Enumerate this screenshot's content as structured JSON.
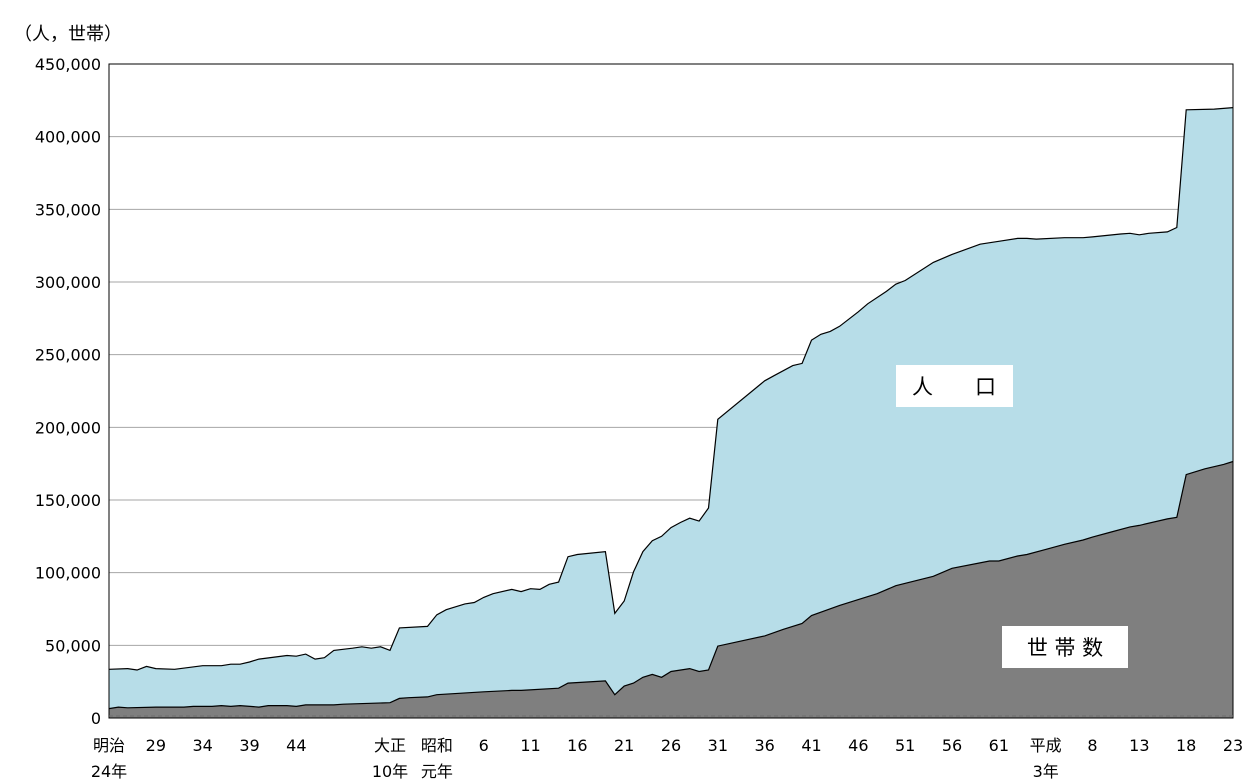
{
  "chart_data": {
    "type": "area",
    "title": "",
    "ylabel": "（人，世帯）",
    "ylim": [
      0,
      450000
    ],
    "y_ticks": [
      0,
      50000,
      100000,
      150000,
      200000,
      250000,
      300000,
      350000,
      400000,
      450000
    ],
    "y_tick_labels": [
      "0",
      "50,000",
      "100,000",
      "150,000",
      "200,000",
      "250,000",
      "300,000",
      "350,000",
      "400,000",
      "450,000"
    ],
    "grid": true,
    "x_tick_labels": [
      {
        "line1": "明治",
        "line2": "24年",
        "year": "明治24年"
      },
      {
        "line1": "29",
        "line2": "",
        "year": "明治29年"
      },
      {
        "line1": "34",
        "line2": "",
        "year": "明治34年"
      },
      {
        "line1": "39",
        "line2": "",
        "year": "明治39年"
      },
      {
        "line1": "44",
        "line2": "",
        "year": "明治44年"
      },
      {
        "line1": "大正",
        "line2": "10年",
        "year": "大正10年"
      },
      {
        "line1": "昭和",
        "line2": "元年",
        "year": "昭和元年"
      },
      {
        "line1": "6",
        "line2": "",
        "year": "昭和6年"
      },
      {
        "line1": "11",
        "line2": "",
        "year": "昭和11年"
      },
      {
        "line1": "16",
        "line2": "",
        "year": "昭和16年"
      },
      {
        "line1": "21",
        "line2": "",
        "year": "昭和21年"
      },
      {
        "line1": "26",
        "line2": "",
        "year": "昭和26年"
      },
      {
        "line1": "31",
        "line2": "",
        "year": "昭和31年"
      },
      {
        "line1": "36",
        "line2": "",
        "year": "昭和36年"
      },
      {
        "line1": "41",
        "line2": "",
        "year": "昭和41年"
      },
      {
        "line1": "46",
        "line2": "",
        "year": "昭和46年"
      },
      {
        "line1": "51",
        "line2": "",
        "year": "昭和51年"
      },
      {
        "line1": "56",
        "line2": "",
        "year": "昭和56年"
      },
      {
        "line1": "61",
        "line2": "",
        "year": "昭和61年"
      },
      {
        "line1": "平成",
        "line2": "3年",
        "year": "平成3年"
      },
      {
        "line1": "8",
        "line2": "",
        "year": "平成8年"
      },
      {
        "line1": "13",
        "line2": "",
        "year": "平成13年"
      },
      {
        "line1": "18",
        "line2": "",
        "year": "平成18年"
      },
      {
        "line1": "23",
        "line2": "",
        "year": "平成23年"
      }
    ],
    "series": [
      {
        "name": "人　　口",
        "color": "#b7dde8",
        "values": [
          {
            "year": "明治24年",
            "value": 33500
          },
          {
            "year": "明治26年",
            "value": 34000
          },
          {
            "year": "明治27年",
            "value": 33000
          },
          {
            "year": "明治28年",
            "value": 35500
          },
          {
            "year": "明治29年",
            "value": 34000
          },
          {
            "year": "明治31年",
            "value": 33500
          },
          {
            "year": "明治34年",
            "value": 36000
          },
          {
            "year": "明治36年",
            "value": 36000
          },
          {
            "year": "明治37年",
            "value": 37000
          },
          {
            "year": "明治38年",
            "value": 37000
          },
          {
            "year": "明治39年",
            "value": 38500
          },
          {
            "year": "明治40年",
            "value": 40500
          },
          {
            "year": "明治43年",
            "value": 43000
          },
          {
            "year": "明治44年",
            "value": 42500
          },
          {
            "year": "明治45年",
            "value": 44000
          },
          {
            "year": "大正2年",
            "value": 40500
          },
          {
            "year": "大正3年",
            "value": 41500
          },
          {
            "year": "大正4年",
            "value": 46500
          },
          {
            "year": "大正6年",
            "value": 48000
          },
          {
            "year": "大正7年",
            "value": 49000
          },
          {
            "year": "大正8年",
            "value": 48000
          },
          {
            "year": "大正9年",
            "value": 49000
          },
          {
            "year": "大正10年",
            "value": 46500
          },
          {
            "year": "大正11年",
            "value": 62000
          },
          {
            "year": "大正14年",
            "value": 63000
          },
          {
            "year": "昭和元年",
            "value": 71000
          },
          {
            "year": "昭和2年",
            "value": 74500
          },
          {
            "year": "昭和4年",
            "value": 78500
          },
          {
            "year": "昭和5年",
            "value": 79500
          },
          {
            "year": "昭和6年",
            "value": 83000
          },
          {
            "year": "昭和7年",
            "value": 85500
          },
          {
            "year": "昭和9年",
            "value": 88500
          },
          {
            "year": "昭和10年",
            "value": 87000
          },
          {
            "year": "昭和11年",
            "value": 89000
          },
          {
            "year": "昭和12年",
            "value": 88500
          },
          {
            "year": "昭和13年",
            "value": 92000
          },
          {
            "year": "昭和14年",
            "value": 93500
          },
          {
            "year": "昭和15年",
            "value": 111000
          },
          {
            "year": "昭和16年",
            "value": 112500
          },
          {
            "year": "昭和19年",
            "value": 114500
          },
          {
            "year": "昭和20年",
            "value": 72000
          },
          {
            "year": "昭和21年",
            "value": 80500
          },
          {
            "year": "昭和22年",
            "value": 100500
          },
          {
            "year": "昭和23年",
            "value": 114500
          },
          {
            "year": "昭和24年",
            "value": 122000
          },
          {
            "year": "昭和25年",
            "value": 125000
          },
          {
            "year": "昭和26年",
            "value": 131000
          },
          {
            "year": "昭和27年",
            "value": 134500
          },
          {
            "year": "昭和28年",
            "value": 137500
          },
          {
            "year": "昭和29年",
            "value": 135500
          },
          {
            "year": "昭和30年",
            "value": 144500
          },
          {
            "year": "昭和31年",
            "value": 205500
          },
          {
            "year": "昭和36年",
            "value": 232000
          },
          {
            "year": "昭和37年",
            "value": 235500
          },
          {
            "year": "昭和39年",
            "value": 242500
          },
          {
            "year": "昭和40年",
            "value": 244000
          },
          {
            "year": "昭和41年",
            "value": 260000
          },
          {
            "year": "昭和42年",
            "value": 264000
          },
          {
            "year": "昭和43年",
            "value": 266000
          },
          {
            "year": "昭和44年",
            "value": 269500
          },
          {
            "year": "昭和46年",
            "value": 279500
          },
          {
            "year": "昭和47年",
            "value": 285000
          },
          {
            "year": "昭和49年",
            "value": 293500
          },
          {
            "year": "昭和50年",
            "value": 298500
          },
          {
            "year": "昭和51年",
            "value": 301000
          },
          {
            "year": "昭和54年",
            "value": 313500
          },
          {
            "year": "昭和56年",
            "value": 319000
          },
          {
            "year": "昭和59年",
            "value": 326000
          },
          {
            "year": "昭和61年",
            "value": 328000
          },
          {
            "year": "昭和63年",
            "value": 330000
          },
          {
            "year": "平成元年",
            "value": 330000
          },
          {
            "year": "平成2年",
            "value": 329500
          },
          {
            "year": "平成5年",
            "value": 330500
          },
          {
            "year": "平成7年",
            "value": 330500
          },
          {
            "year": "平成8年",
            "value": 331000
          },
          {
            "year": "平成11年",
            "value": 333000
          },
          {
            "year": "平成12年",
            "value": 333500
          },
          {
            "year": "平成13年",
            "value": 332500
          },
          {
            "year": "平成14年",
            "value": 333500
          },
          {
            "year": "平成16年",
            "value": 334500
          },
          {
            "year": "平成17年",
            "value": 337500
          },
          {
            "year": "平成18年",
            "value": 418500
          },
          {
            "year": "平成21年",
            "value": 419000
          },
          {
            "year": "平成23年",
            "value": 420000
          }
        ]
      },
      {
        "name": "世 帯 数",
        "color": "#7f7f7f",
        "values": [
          {
            "year": "明治24年",
            "value": 6500
          },
          {
            "year": "明治25年",
            "value": 7500
          },
          {
            "year": "明治26年",
            "value": 7000
          },
          {
            "year": "明治29年",
            "value": 7500
          },
          {
            "year": "明治32年",
            "value": 7500
          },
          {
            "year": "明治33年",
            "value": 8000
          },
          {
            "year": "明治35年",
            "value": 8000
          },
          {
            "year": "明治36年",
            "value": 8500
          },
          {
            "year": "明治37年",
            "value": 8000
          },
          {
            "year": "明治38年",
            "value": 8500
          },
          {
            "year": "明治40年",
            "value": 7500
          },
          {
            "year": "明治41年",
            "value": 8500
          },
          {
            "year": "明治43年",
            "value": 8500
          },
          {
            "year": "明治44年",
            "value": 8000
          },
          {
            "year": "大正元年",
            "value": 9000
          },
          {
            "year": "大正4年",
            "value": 9000
          },
          {
            "year": "大正5年",
            "value": 9500
          },
          {
            "year": "大正10年",
            "value": 10500
          },
          {
            "year": "大正11年",
            "value": 13500
          },
          {
            "year": "大正12年",
            "value": 14000
          },
          {
            "year": "大正14年",
            "value": 14500
          },
          {
            "year": "昭和元年",
            "value": 16000
          },
          {
            "year": "昭和6年",
            "value": 18000
          },
          {
            "year": "昭和9年",
            "value": 19000
          },
          {
            "year": "昭和10年",
            "value": 19000
          },
          {
            "year": "昭和14年",
            "value": 20500
          },
          {
            "year": "昭和15年",
            "value": 24000
          },
          {
            "year": "昭和19年",
            "value": 25500
          },
          {
            "year": "昭和20年",
            "value": 16000
          },
          {
            "year": "昭和21年",
            "value": 22000
          },
          {
            "year": "昭和22年",
            "value": 24000
          },
          {
            "year": "昭和23年",
            "value": 28000
          },
          {
            "year": "昭和24年",
            "value": 30000
          },
          {
            "year": "昭和25年",
            "value": 28000
          },
          {
            "year": "昭和26年",
            "value": 32000
          },
          {
            "year": "昭和28年",
            "value": 34000
          },
          {
            "year": "昭和29年",
            "value": 32000
          },
          {
            "year": "昭和30年",
            "value": 33000
          },
          {
            "year": "昭和31年",
            "value": 49500
          },
          {
            "year": "昭和36年",
            "value": 56500
          },
          {
            "year": "昭和38年",
            "value": 61000
          },
          {
            "year": "昭和40年",
            "value": 65000
          },
          {
            "year": "昭和41年",
            "value": 70500
          },
          {
            "year": "昭和44年",
            "value": 77500
          },
          {
            "year": "昭和46年",
            "value": 81500
          },
          {
            "year": "昭和48年",
            "value": 85500
          },
          {
            "year": "昭和50年",
            "value": 91000
          },
          {
            "year": "昭和54年",
            "value": 97500
          },
          {
            "year": "昭和56年",
            "value": 103000
          },
          {
            "year": "昭和60年",
            "value": 108000
          },
          {
            "year": "昭和61年",
            "value": 108000
          },
          {
            "year": "昭和63年",
            "value": 111500
          },
          {
            "year": "平成元年",
            "value": 112500
          },
          {
            "year": "平成3年",
            "value": 116000
          },
          {
            "year": "平成5年",
            "value": 119500
          },
          {
            "year": "平成7年",
            "value": 122500
          },
          {
            "year": "平成8年",
            "value": 124500
          },
          {
            "year": "平成10年",
            "value": 128000
          },
          {
            "year": "平成12年",
            "value": 131500
          },
          {
            "year": "平成13年",
            "value": 132500
          },
          {
            "year": "平成16年",
            "value": 137000
          },
          {
            "year": "平成17年",
            "value": 138000
          },
          {
            "year": "平成18年",
            "value": 167500
          },
          {
            "year": "平成20年",
            "value": 171500
          },
          {
            "year": "平成22年",
            "value": 174500
          },
          {
            "year": "平成23年",
            "value": 176500
          }
        ]
      }
    ]
  }
}
